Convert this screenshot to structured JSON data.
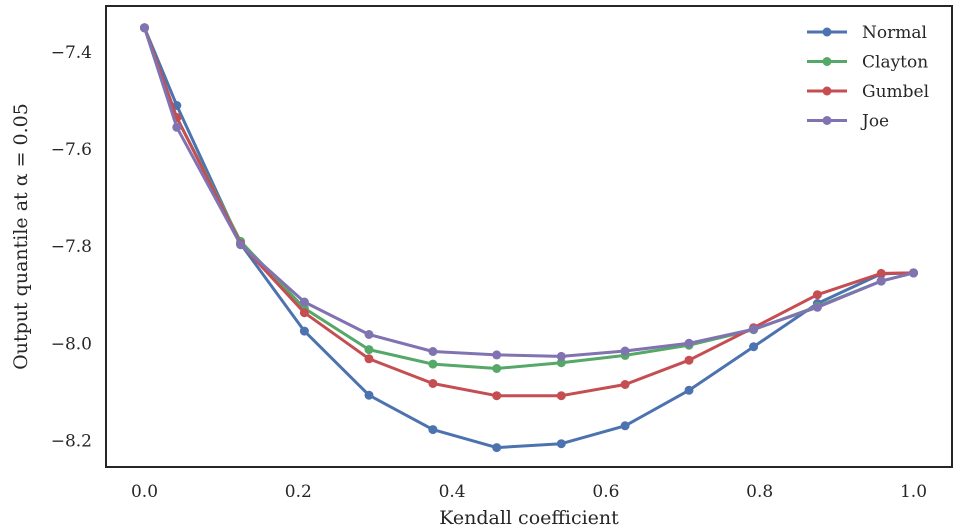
{
  "chart_data": {
    "type": "line",
    "xlabel": "Kendall coefficient",
    "ylabel": "Output quantile at α = 0.05",
    "xlim": [
      -0.05,
      1.05
    ],
    "ylim": [
      -8.255,
      -7.305
    ],
    "xticks": [
      0.0,
      0.2,
      0.4,
      0.6,
      0.8,
      1.0
    ],
    "xtick_labels": [
      "0.0",
      "0.2",
      "0.4",
      "0.6",
      "0.8",
      "1.0"
    ],
    "yticks": [
      -7.4,
      -7.6,
      -7.8,
      -8.0,
      -8.2
    ],
    "ytick_labels": [
      "−7.4",
      "−7.6",
      "−7.8",
      "−8.0",
      "−8.2"
    ],
    "grid": false,
    "legend_position": "top-right",
    "series": [
      {
        "name": "Normal",
        "color": "#4c72b0",
        "x": [
          0.0,
          0.042,
          0.125,
          0.208,
          0.292,
          0.375,
          0.458,
          0.542,
          0.625,
          0.708,
          0.792,
          0.875,
          0.958,
          1.0
        ],
        "y": [
          -7.35,
          -7.51,
          -7.795,
          -7.975,
          -8.107,
          -8.178,
          -8.215,
          -8.207,
          -8.17,
          -8.097,
          -8.007,
          -7.918,
          -7.857,
          -7.855
        ]
      },
      {
        "name": "Clayton",
        "color": "#55a868",
        "x": [
          0.0,
          0.042,
          0.125,
          0.208,
          0.292,
          0.375,
          0.458,
          0.542,
          0.625,
          0.708,
          0.792,
          0.875,
          0.958,
          1.0
        ],
        "y": [
          -7.35,
          -7.535,
          -7.79,
          -7.928,
          -8.013,
          -8.043,
          -8.052,
          -8.04,
          -8.025,
          -8.004,
          -7.972,
          -7.924,
          -7.872,
          -7.855
        ]
      },
      {
        "name": "Gumbel",
        "color": "#c44e52",
        "x": [
          0.0,
          0.042,
          0.125,
          0.208,
          0.292,
          0.375,
          0.458,
          0.542,
          0.625,
          0.708,
          0.792,
          0.875,
          0.958,
          1.0
        ],
        "y": [
          -7.35,
          -7.535,
          -7.795,
          -7.937,
          -8.032,
          -8.083,
          -8.108,
          -8.108,
          -8.085,
          -8.035,
          -7.968,
          -7.9,
          -7.856,
          -7.855
        ]
      },
      {
        "name": "Joe",
        "color": "#8172b2",
        "x": [
          0.0,
          0.042,
          0.125,
          0.208,
          0.292,
          0.375,
          0.458,
          0.542,
          0.625,
          0.708,
          0.792,
          0.875,
          0.958,
          1.0
        ],
        "y": [
          -7.35,
          -7.555,
          -7.797,
          -7.915,
          -7.982,
          -8.017,
          -8.024,
          -8.027,
          -8.016,
          -8.0,
          -7.971,
          -7.926,
          -7.872,
          -7.855
        ]
      }
    ]
  }
}
